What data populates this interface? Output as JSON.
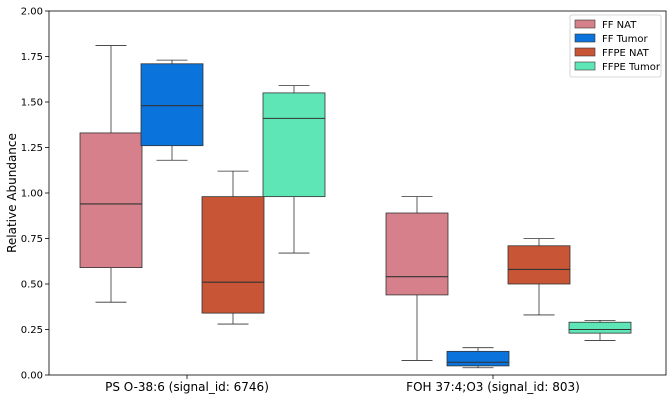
{
  "chart_data": {
    "type": "box",
    "ylabel": "Relative Abundance",
    "ylim": [
      0,
      2.0
    ],
    "yticks": [
      "0.00",
      "0.25",
      "0.50",
      "0.75",
      "1.00",
      "1.25",
      "1.50",
      "1.75",
      "2.00"
    ],
    "grid": false,
    "legend_position": "top-right",
    "categories": [
      "PS O-38:6 (signal_id: 6746)",
      "FOH 37:4;O3 (signal_id: 803)"
    ],
    "series": [
      {
        "name": "FF NAT",
        "color": "#d5808a",
        "boxes": [
          {
            "whisker_low": 0.4,
            "q1": 0.59,
            "median": 0.94,
            "q3": 1.33,
            "whisker_high": 1.81
          },
          {
            "whisker_low": 0.08,
            "q1": 0.44,
            "median": 0.54,
            "q3": 0.89,
            "whisker_high": 0.98
          }
        ]
      },
      {
        "name": "FF Tumor",
        "color": "#0a73dc",
        "boxes": [
          {
            "whisker_low": 1.18,
            "q1": 1.26,
            "median": 1.48,
            "q3": 1.71,
            "whisker_high": 1.73
          },
          {
            "whisker_low": 0.04,
            "q1": 0.05,
            "median": 0.07,
            "q3": 0.13,
            "whisker_high": 0.15
          }
        ]
      },
      {
        "name": "FFPE NAT",
        "color": "#c85535",
        "boxes": [
          {
            "whisker_low": 0.28,
            "q1": 0.34,
            "median": 0.51,
            "q3": 0.98,
            "whisker_high": 1.12
          },
          {
            "whisker_low": 0.33,
            "q1": 0.5,
            "median": 0.58,
            "q3": 0.71,
            "whisker_high": 0.75
          }
        ]
      },
      {
        "name": "FFPE Tumor",
        "color": "#5ee6b7",
        "boxes": [
          {
            "whisker_low": 0.67,
            "q1": 0.98,
            "median": 1.41,
            "q3": 1.55,
            "whisker_high": 1.59
          },
          {
            "whisker_low": 0.19,
            "q1": 0.23,
            "median": 0.25,
            "q3": 0.29,
            "whisker_high": 0.3
          }
        ]
      }
    ]
  }
}
